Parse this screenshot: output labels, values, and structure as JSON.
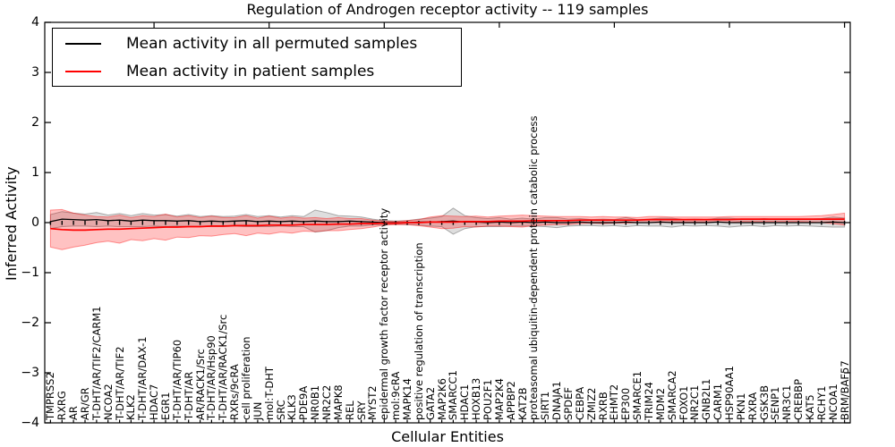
{
  "chart_data": {
    "type": "line",
    "title": "Regulation of Androgen receptor activity -- 119 samples",
    "xlabel": "Cellular Entities",
    "ylabel": "Inferred Activity",
    "ylim": [
      -4,
      4
    ],
    "ytick_labels": [
      "4",
      "3",
      "2",
      "1",
      "0",
      "−1",
      "−2",
      "−3",
      "−4"
    ],
    "ytick_values": [
      4,
      3,
      2,
      1,
      0,
      -1,
      -2,
      -3,
      -4
    ],
    "grid": false,
    "legend_position": "upper left",
    "zero_line": {
      "style": "dotted",
      "color": "#000000"
    },
    "categories": [
      "TMPRSS2",
      "RXRG",
      "AR",
      "AR/GR",
      "T-DHT/AR/TIF2/CARM1",
      "NCOA2",
      "T-DHT/AR/TIF2",
      "KLK2",
      "T-DHT/AR/DAX-1",
      "HDAC7",
      "EGR1",
      "T-DHT/AR/TIP60",
      "T-DHT/AR",
      "AR/RACK1/Src",
      "T-DHT/AR/Hsp90",
      "T-DHT/AR/RACK1/Src",
      "RXRs/9cRA",
      "cell proliferation",
      "JUN",
      "mol:T-DHT",
      "SRC",
      "KLK3",
      "PDE9A",
      "NR0B1",
      "NR2C2",
      "MAPK8",
      "REL",
      "SRY",
      "MYST2",
      "epidermal growth factor receptor activity",
      "mol:9cRA",
      "MAPK14",
      "positive regulation of transcription",
      "GATA2",
      "MAP2K6",
      "SMARCC1",
      "HDAC1",
      "HOXB13",
      "POU2F1",
      "MAP2K4",
      "APPBP2",
      "KAT2B",
      "proteasomal ubiquitin-dependent protein catabolic process",
      "SIRT1",
      "DNAJA1",
      "SPDEF",
      "CEBPA",
      "ZMIZ2",
      "RXRB",
      "EHMT2",
      "EP300",
      "SMARCE1",
      "TRIM24",
      "MDM2",
      "SMARCA2",
      "FOXO1",
      "NR2C1",
      "GNB2L1",
      "CARM1",
      "HSP90AA1",
      "PKN1",
      "RXRA",
      "GSK3B",
      "SENP1",
      "NR3C1",
      "CREBBP",
      "KAT5",
      "RCHY1",
      "NCOA1",
      "BRM/BAF57"
    ],
    "series": [
      {
        "name": "Mean activity in all permuted samples",
        "color": "#000000",
        "band_fill": "rgba(0,0,0,0.13)",
        "band_edge": "rgba(128,128,128,0.65)",
        "mean": [
          0.02,
          0.07,
          0.06,
          0.05,
          0.06,
          0.04,
          0.05,
          0.03,
          0.05,
          0.04,
          0.04,
          0.03,
          0.04,
          0.02,
          0.03,
          0.02,
          0.03,
          0.04,
          0.02,
          0.03,
          0.02,
          0.03,
          0.02,
          0.03,
          0.02,
          0.02,
          0.03,
          0.02,
          0.01,
          0.0,
          0.0,
          0.0,
          0.01,
          0.01,
          0.02,
          0.03,
          0.01,
          0.01,
          0.0,
          0.01,
          0.0,
          0.01,
          0.0,
          0.01,
          0.0,
          0.0,
          0.01,
          0.0,
          0.0,
          0.0,
          0.01,
          0.0,
          0.0,
          0.01,
          0.0,
          0.0,
          0.0,
          0.0,
          0.01,
          0.0,
          0.0,
          0.0,
          0.0,
          0.0,
          0.0,
          0.0,
          0.0,
          0.0,
          0.01,
          0.0
        ],
        "std": [
          0.14,
          0.15,
          0.13,
          0.12,
          0.14,
          0.11,
          0.13,
          0.11,
          0.13,
          0.11,
          0.12,
          0.1,
          0.12,
          0.1,
          0.11,
          0.1,
          0.1,
          0.12,
          0.1,
          0.11,
          0.09,
          0.11,
          0.1,
          0.22,
          0.18,
          0.12,
          0.1,
          0.09,
          0.06,
          0.04,
          0.03,
          0.04,
          0.06,
          0.08,
          0.1,
          0.26,
          0.13,
          0.09,
          0.08,
          0.09,
          0.07,
          0.08,
          0.07,
          0.09,
          0.1,
          0.07,
          0.07,
          0.06,
          0.07,
          0.06,
          0.09,
          0.06,
          0.07,
          0.08,
          0.09,
          0.06,
          0.07,
          0.06,
          0.08,
          0.09,
          0.07,
          0.06,
          0.08,
          0.06,
          0.07,
          0.06,
          0.07,
          0.08,
          0.1,
          0.09
        ]
      },
      {
        "name": "Mean activity in patient samples",
        "color": "#ff0000",
        "band_fill": "rgba(255,0,0,0.24)",
        "band_edge": "rgba(255,0,0,0.40)",
        "mean": [
          -0.12,
          -0.14,
          -0.15,
          -0.15,
          -0.14,
          -0.13,
          -0.13,
          -0.12,
          -0.11,
          -0.1,
          -0.09,
          -0.09,
          -0.08,
          -0.08,
          -0.07,
          -0.07,
          -0.06,
          -0.06,
          -0.06,
          -0.05,
          -0.05,
          -0.05,
          -0.04,
          -0.04,
          -0.04,
          -0.03,
          -0.03,
          -0.02,
          -0.02,
          -0.01,
          -0.01,
          0.0,
          0.0,
          0.01,
          0.01,
          0.01,
          0.02,
          0.02,
          0.02,
          0.03,
          0.03,
          0.03,
          0.04,
          0.04,
          0.04,
          0.04,
          0.05,
          0.05,
          0.05,
          0.05,
          0.05,
          0.05,
          0.06,
          0.06,
          0.06,
          0.06,
          0.06,
          0.06,
          0.06,
          0.06,
          0.07,
          0.07,
          0.07,
          0.07,
          0.07,
          0.07,
          0.07,
          0.07,
          0.07,
          0.07
        ],
        "std": [
          0.37,
          0.4,
          0.34,
          0.3,
          0.26,
          0.24,
          0.28,
          0.22,
          0.25,
          0.22,
          0.26,
          0.2,
          0.22,
          0.18,
          0.2,
          0.17,
          0.16,
          0.2,
          0.15,
          0.18,
          0.14,
          0.16,
          0.13,
          0.14,
          0.12,
          0.13,
          0.11,
          0.1,
          0.07,
          0.04,
          0.03,
          0.04,
          0.06,
          0.1,
          0.13,
          0.12,
          0.1,
          0.11,
          0.09,
          0.1,
          0.11,
          0.12,
          0.1,
          0.09,
          0.08,
          0.08,
          0.07,
          0.06,
          0.07,
          0.06,
          0.06,
          0.05,
          0.06,
          0.06,
          0.05,
          0.05,
          0.05,
          0.05,
          0.05,
          0.06,
          0.05,
          0.05,
          0.05,
          0.05,
          0.05,
          0.05,
          0.06,
          0.07,
          0.09,
          0.12
        ]
      }
    ]
  }
}
